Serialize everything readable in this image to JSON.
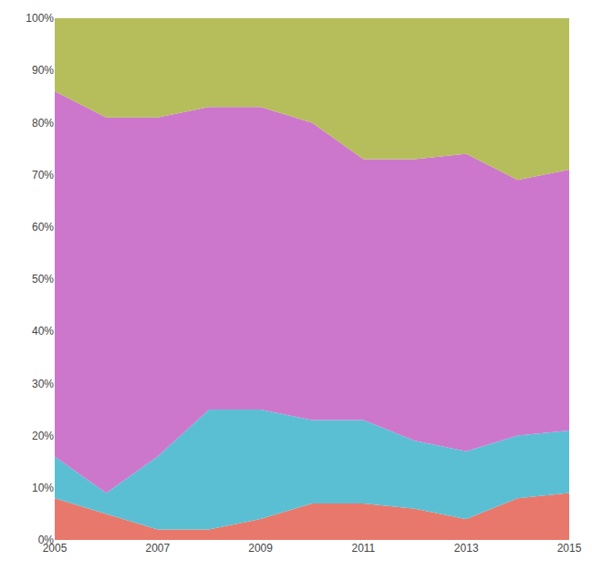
{
  "chart_data": {
    "type": "area",
    "stacked": true,
    "x": [
      2005,
      2006,
      2007,
      2008,
      2009,
      2010,
      2011,
      2012,
      2013,
      2014,
      2015
    ],
    "series": [
      {
        "color": "#e8786b",
        "values": [
          0.08,
          0.05,
          0.02,
          0.02,
          0.04,
          0.07,
          0.07,
          0.06,
          0.04,
          0.08,
          0.09
        ]
      },
      {
        "color": "#5bbfd4",
        "values": [
          0.08,
          0.04,
          0.14,
          0.23,
          0.21,
          0.16,
          0.16,
          0.13,
          0.13,
          0.12,
          0.12
        ]
      },
      {
        "color": "#cc77cc",
        "values": [
          0.7,
          0.72,
          0.65,
          0.58,
          0.58,
          0.57,
          0.5,
          0.54,
          0.57,
          0.49,
          0.5
        ]
      },
      {
        "color": "#b5be5a",
        "values": [
          0.14,
          0.19,
          0.19,
          0.17,
          0.17,
          0.2,
          0.27,
          0.27,
          0.26,
          0.31,
          0.29
        ]
      }
    ],
    "xlim": [
      2005,
      2015
    ],
    "xticks": [
      2005,
      2007,
      2009,
      2011,
      2013,
      2015
    ],
    "ylim": [
      0,
      1.0
    ],
    "yticks": [
      {
        "value": 0,
        "label": "0%"
      },
      {
        "value": 0.1,
        "label": "10%"
      },
      {
        "value": 0.2,
        "label": "20%"
      },
      {
        "value": 0.3,
        "label": "30%"
      },
      {
        "value": 0.4,
        "label": "40%"
      },
      {
        "value": 0.5,
        "label": "50%"
      },
      {
        "value": 0.6,
        "label": "60%"
      },
      {
        "value": 0.7,
        "label": "70%"
      },
      {
        "value": 0.8,
        "label": "80%"
      },
      {
        "value": 0.9,
        "label": "90%"
      },
      {
        "value": 1.0,
        "label": "100%"
      }
    ],
    "grid": true
  }
}
